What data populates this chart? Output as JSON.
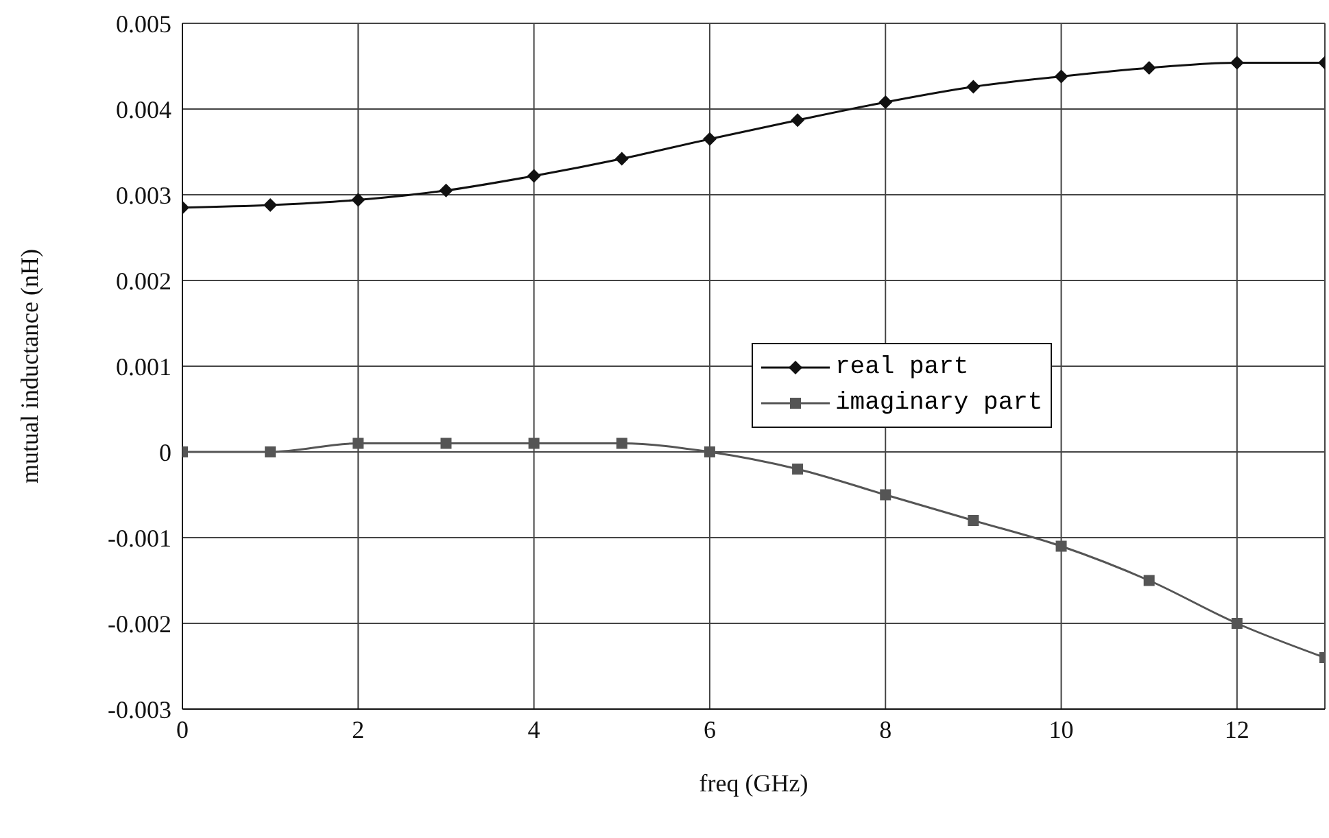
{
  "chart_data": {
    "type": "line",
    "xlabel": "freq (GHz)",
    "ylabel": "mutual inductance (nH)",
    "x": [
      0,
      1,
      2,
      3,
      4,
      5,
      6,
      7,
      8,
      9,
      10,
      11,
      12,
      13
    ],
    "series": [
      {
        "name": "real part",
        "color": "#111111",
        "marker": "diamond",
        "values": [
          0.00285,
          0.00288,
          0.00294,
          0.00305,
          0.00322,
          0.00342,
          0.00365,
          0.00387,
          0.00408,
          0.00426,
          0.00438,
          0.00448,
          0.00454,
          0.00454
        ]
      },
      {
        "name": "imaginary part",
        "color": "#555555",
        "marker": "square",
        "values": [
          0.0,
          0.0,
          0.0001,
          0.0001,
          0.0001,
          0.0001,
          0.0,
          -0.0002,
          -0.0005,
          -0.0008,
          -0.0011,
          -0.0015,
          -0.002,
          -0.0024
        ]
      }
    ],
    "xlim": [
      0,
      13
    ],
    "xticks": [
      0,
      2,
      4,
      6,
      8,
      10,
      12
    ],
    "ylim": [
      -0.003,
      0.005
    ],
    "yticks": [
      -0.003,
      -0.002,
      -0.001,
      0,
      0.001,
      0.002,
      0.003,
      0.004,
      0.005
    ],
    "grid": true,
    "legend": "right",
    "line_style": "solid"
  }
}
